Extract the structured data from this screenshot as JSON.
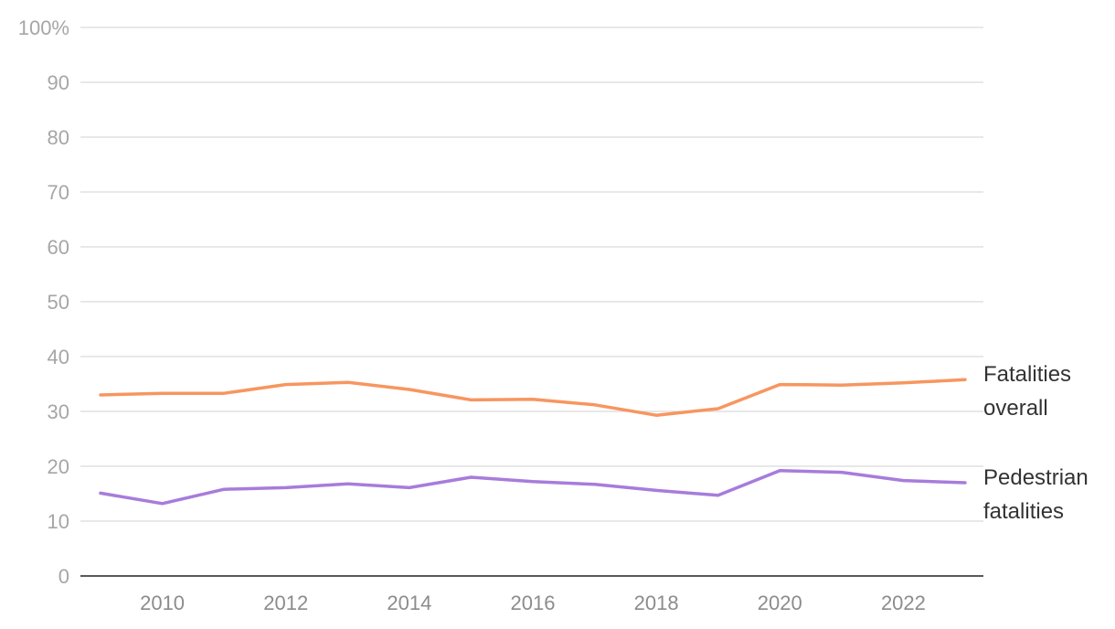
{
  "chart_data": {
    "type": "line",
    "x": [
      2009,
      2010,
      2011,
      2012,
      2013,
      2014,
      2015,
      2016,
      2017,
      2018,
      2019,
      2020,
      2021,
      2022,
      2023
    ],
    "xticks": [
      "2010",
      "2012",
      "2014",
      "2016",
      "2018",
      "2020",
      "2022"
    ],
    "yticks": [
      "0",
      "10",
      "20",
      "30",
      "40",
      "50",
      "60",
      "70",
      "80",
      "90",
      "100%"
    ],
    "ylim": [
      0,
      100
    ],
    "xlim": [
      2009,
      2023
    ],
    "grid": true,
    "series": [
      {
        "name_lines": [
          "Fatalities",
          "overall"
        ],
        "color": "#f7965f",
        "values": [
          33.0,
          33.3,
          33.3,
          34.9,
          35.3,
          34.0,
          32.1,
          32.2,
          31.2,
          29.3,
          30.5,
          34.9,
          34.8,
          35.2,
          35.8
        ]
      },
      {
        "name_lines": [
          "Pedestrian",
          "fatalities"
        ],
        "color": "#a77cdb",
        "values": [
          15.1,
          13.2,
          15.8,
          16.1,
          16.8,
          16.1,
          18.0,
          17.2,
          16.7,
          15.6,
          14.7,
          19.2,
          18.9,
          17.4,
          17.0
        ]
      }
    ]
  }
}
